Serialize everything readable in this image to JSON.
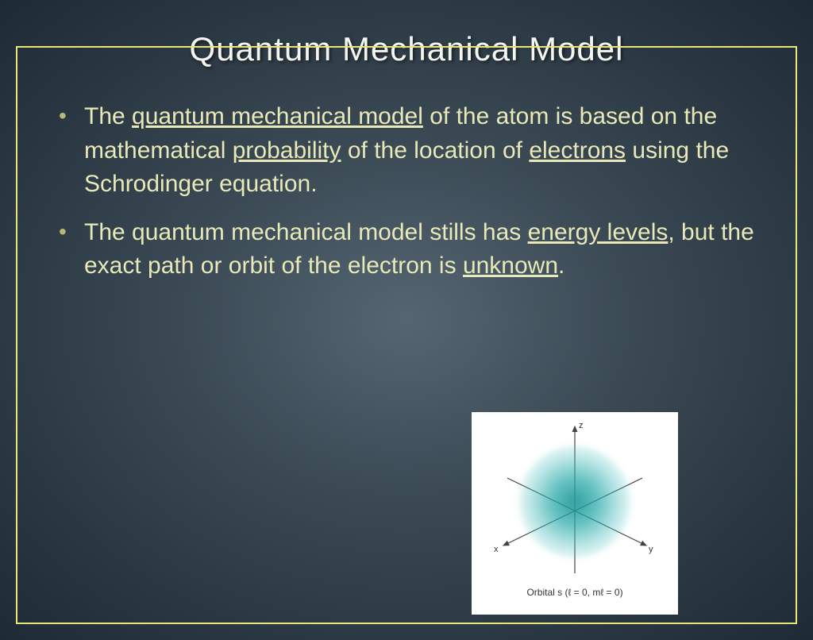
{
  "title": "Quantum Mechanical Model",
  "bullets": [
    {
      "parts": [
        {
          "text": "The ",
          "u": false
        },
        {
          "text": "quantum mechanical model",
          "u": true
        },
        {
          "text": " of the atom is based on the mathematical ",
          "u": false
        },
        {
          "text": "probability",
          "u": true
        },
        {
          "text": " of the location of ",
          "u": false
        },
        {
          "text": "electrons",
          "u": true
        },
        {
          "text": " using the Schrodinger equation.",
          "u": false
        }
      ]
    },
    {
      "parts": [
        {
          "text": "The quantum mechanical model stills has ",
          "u": false
        },
        {
          "text": "energy levels",
          "u": true
        },
        {
          "text": ", but the exact path or orbit of the electron is ",
          "u": false
        },
        {
          "text": "unknown",
          "u": true
        },
        {
          "text": ".",
          "u": false
        }
      ]
    }
  ],
  "diagram": {
    "axes": {
      "x": "x",
      "y": "y",
      "z": "z"
    },
    "caption": "Orbital s (ℓ = 0, mℓ = 0)",
    "cloud_color_inner": "#1c9494",
    "cloud_color_outer": "#98dcdc",
    "axis_color": "#444444",
    "background_color": "#ffffff"
  },
  "colors": {
    "border": "#e6e67a",
    "title_text": "#f5f5f0",
    "body_text": "#e8e8b8",
    "background_center": "#556672",
    "background_edge": "#1e2a35"
  },
  "typography": {
    "title_fontsize": 42,
    "body_fontsize": 30,
    "caption_fontsize": 12
  }
}
